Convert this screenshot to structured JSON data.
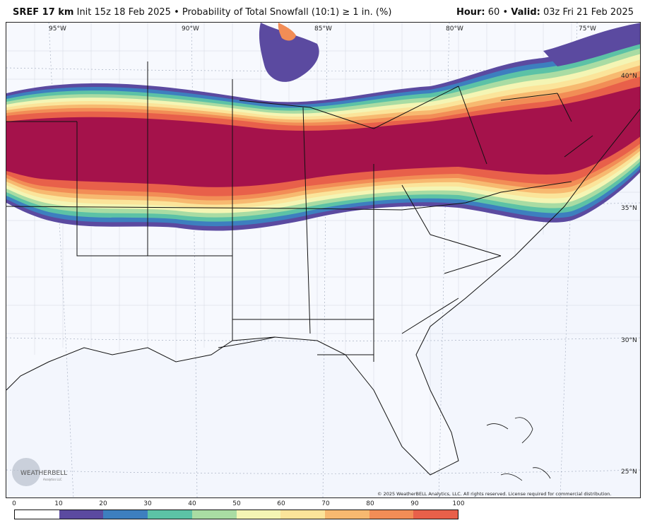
{
  "header": {
    "model": "SREF 17 km",
    "init": "Init 15z 18 Feb 2025",
    "separator": "•",
    "product": "Probability of Total Snowfall (10:1)",
    "threshold": "≥ 1 in. (%)",
    "hour_label": "Hour:",
    "hour_value": "60",
    "valid_label": "Valid:",
    "valid_value": "03z Fri 21 Feb 2025"
  },
  "map": {
    "lon_labels": [
      "95°W",
      "90°W",
      "85°W",
      "80°W",
      "75°W"
    ],
    "lat_labels": [
      "40°N",
      "35°N",
      "30°N",
      "25°N"
    ],
    "copyright": "© 2025 WeatherBELL Analytics, LLC. All rights reserved. License required for commercial distribution.",
    "logo_text": "WEATHERBELL",
    "logo_subtext": "Analytics LLC"
  },
  "colorbar": {
    "ticks": [
      "0",
      "10",
      "20",
      "30",
      "40",
      "50",
      "60",
      "70",
      "80",
      "90",
      "100"
    ],
    "colors": [
      "#ffffff",
      "#5b4aa0",
      "#3d7fbf",
      "#5cc2a6",
      "#a9dca3",
      "#f4f5b4",
      "#fbe49a",
      "#f7b970",
      "#f28d56",
      "#e8604a",
      "#a5124b"
    ]
  }
}
